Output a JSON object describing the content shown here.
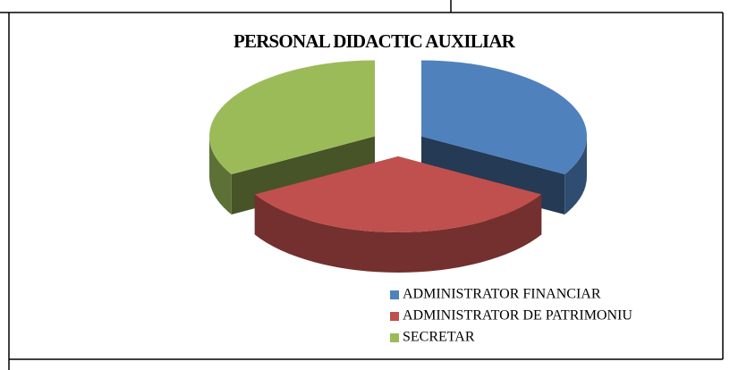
{
  "chart_data": {
    "type": "pie3d",
    "title": "PERSONAL DIDACTIC AUXILIAR",
    "categories": [
      "ADMINISTRATOR FINANCIAR",
      "ADMINISTRATOR DE PATRIMONIU",
      "SECRETAR"
    ],
    "values": [
      1,
      1,
      1
    ],
    "colors": [
      "#4f81bd",
      "#c0504d",
      "#9bbb59"
    ],
    "legend": "bottom-right"
  }
}
